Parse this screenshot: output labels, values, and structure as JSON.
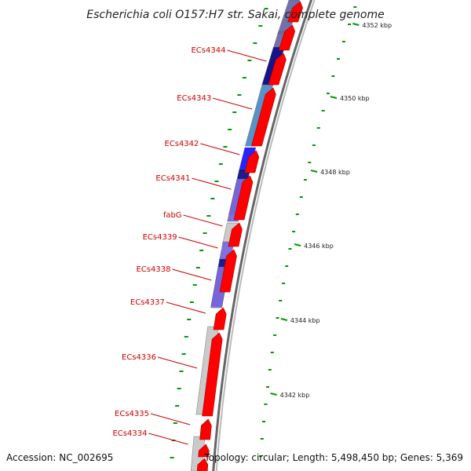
{
  "title": "Escherichia coli O157:H7 str. Sakai, complete genome",
  "footer": {
    "accession": "Accession: NC_002695",
    "info": "Topology: circular; Length: 5,498,450 bp; Genes: 5,369"
  },
  "colors": {
    "forward": "#ff0000",
    "backbone": "#999999",
    "tick": "#009900",
    "label": "#cc0000",
    "gray_gene": "#c8c8c8",
    "blue_light": "#4f8ec6",
    "blue": "#1a1aff",
    "navy": "#10108a",
    "violet": "#7a6ae0",
    "slate": "#6a6aa8"
  },
  "genome_ticks": [
    {
      "label": "4352 kbp"
    },
    {
      "label": "4350 kbp"
    },
    {
      "label": "4348 kbp"
    },
    {
      "label": "4346 kbp"
    },
    {
      "label": "4344 kbp"
    },
    {
      "label": "4342 kbp"
    }
  ],
  "gene_labels": [
    {
      "name": "ECs4344"
    },
    {
      "name": "ECs4343"
    },
    {
      "name": "ECs4342"
    },
    {
      "name": "ECs4341"
    },
    {
      "name": "fabG"
    },
    {
      "name": "ECs4339"
    },
    {
      "name": "ECs4338"
    },
    {
      "name": "ECs4337"
    },
    {
      "name": "ECs4336"
    },
    {
      "name": "ECs4335"
    },
    {
      "name": "ECs4334"
    }
  ]
}
